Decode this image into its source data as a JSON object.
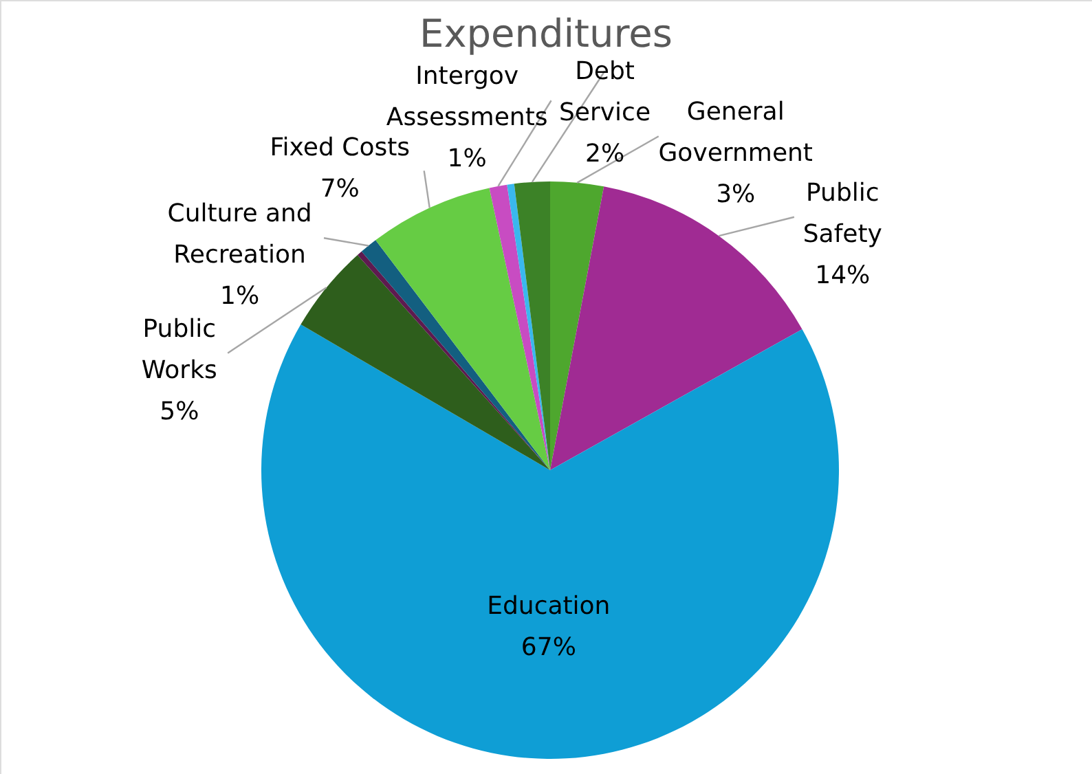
{
  "chart_data": {
    "type": "pie",
    "title": "Expenditures",
    "categories": [
      "General Government",
      "Public Safety",
      "Education",
      "Public Works",
      null,
      "Culture and Recreation",
      "Fixed Costs",
      "Intergov Assessments",
      null,
      "Debt Service"
    ],
    "values": [
      3,
      14,
      67,
      5,
      0.3,
      1,
      7,
      1,
      0.4,
      2
    ],
    "colors": [
      "#4ea72e",
      "#a02b93",
      "#0f9ed5",
      "#2e5e1c",
      "#5e1a4f",
      "#135f80",
      "#66cc44",
      "#c84cc2",
      "#3ab8ee",
      "#3c8227"
    ],
    "value_labels": [
      "3%",
      "14%",
      "67%",
      "5%",
      null,
      "1%",
      "7%",
      "1%",
      null,
      "2%"
    ]
  }
}
